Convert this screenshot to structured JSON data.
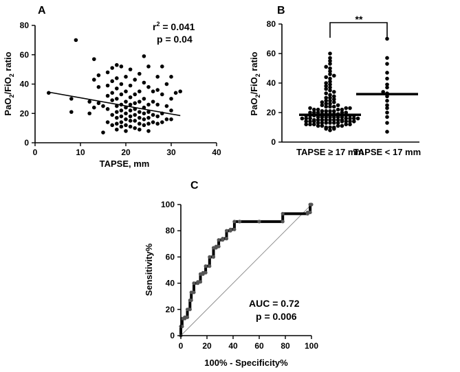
{
  "chart_data": [
    {
      "panel": "A",
      "type": "scatter",
      "xlabel": "TAPSE, mm",
      "ylabel": {
        "pre": "PaO",
        "sub1": "2",
        "mid": "/FiO",
        "sub2": "2",
        "post": " ratio"
      },
      "xlim": [
        0,
        40
      ],
      "ylim": [
        0,
        80
      ],
      "xticks": [
        "0",
        "10",
        "20",
        "30",
        "40"
      ],
      "yticks": [
        "0",
        "20",
        "40",
        "60",
        "80"
      ],
      "annotations": {
        "r_prefix": "r",
        "r_sup": "2",
        "r_value": " = 0.041",
        "p": "p = 0.04"
      },
      "fit_line": {
        "x": [
          3,
          32
        ],
        "y": [
          34.5,
          18.5
        ]
      },
      "points": [
        [
          3,
          34
        ],
        [
          8,
          30
        ],
        [
          8,
          21
        ],
        [
          9,
          70
        ],
        [
          12,
          28
        ],
        [
          12,
          20
        ],
        [
          13,
          57
        ],
        [
          13,
          43
        ],
        [
          13,
          24
        ],
        [
          14,
          46
        ],
        [
          14,
          38
        ],
        [
          14,
          27
        ],
        [
          15,
          7
        ],
        [
          15,
          25
        ],
        [
          16,
          48
        ],
        [
          16,
          39
        ],
        [
          16,
          32
        ],
        [
          16,
          23
        ],
        [
          16,
          14
        ],
        [
          17,
          51
        ],
        [
          17,
          42
        ],
        [
          17,
          34
        ],
        [
          17,
          29
        ],
        [
          17,
          19
        ],
        [
          17,
          12
        ],
        [
          18,
          53
        ],
        [
          18,
          44
        ],
        [
          18,
          37
        ],
        [
          18,
          30
        ],
        [
          18,
          25
        ],
        [
          18,
          21
        ],
        [
          18,
          17
        ],
        [
          18,
          13
        ],
        [
          18,
          9
        ],
        [
          19,
          52
        ],
        [
          19,
          40
        ],
        [
          19,
          33
        ],
        [
          19,
          26
        ],
        [
          19,
          22
        ],
        [
          19,
          18
        ],
        [
          19,
          14
        ],
        [
          19,
          11
        ],
        [
          20,
          45
        ],
        [
          20,
          35
        ],
        [
          20,
          28
        ],
        [
          20,
          24
        ],
        [
          20,
          20
        ],
        [
          20,
          16
        ],
        [
          20,
          12
        ],
        [
          20,
          8
        ],
        [
          21,
          50
        ],
        [
          21,
          39
        ],
        [
          21,
          31
        ],
        [
          21,
          26
        ],
        [
          21,
          22
        ],
        [
          21,
          18
        ],
        [
          21,
          15
        ],
        [
          21,
          11
        ],
        [
          22,
          43
        ],
        [
          22,
          33
        ],
        [
          22,
          27
        ],
        [
          22,
          23
        ],
        [
          22,
          19
        ],
        [
          22,
          15
        ],
        [
          22,
          10
        ],
        [
          23,
          47
        ],
        [
          23,
          35
        ],
        [
          23,
          28
        ],
        [
          23,
          21
        ],
        [
          23,
          17
        ],
        [
          23,
          13
        ],
        [
          23,
          9
        ],
        [
          24,
          59
        ],
        [
          24,
          41
        ],
        [
          24,
          30
        ],
        [
          24,
          24
        ],
        [
          24,
          20
        ],
        [
          24,
          16
        ],
        [
          24,
          12
        ],
        [
          25,
          52
        ],
        [
          25,
          38
        ],
        [
          25,
          26
        ],
        [
          25,
          21
        ],
        [
          25,
          17
        ],
        [
          25,
          13
        ],
        [
          25,
          8
        ],
        [
          26,
          35
        ],
        [
          26,
          28
        ],
        [
          26,
          19
        ],
        [
          26,
          14
        ],
        [
          27,
          45
        ],
        [
          27,
          36
        ],
        [
          27,
          26
        ],
        [
          27,
          18
        ],
        [
          27,
          13
        ],
        [
          28,
          52
        ],
        [
          28,
          33
        ],
        [
          28,
          20
        ],
        [
          28,
          14
        ],
        [
          29,
          40
        ],
        [
          29,
          25
        ],
        [
          29,
          16
        ],
        [
          30,
          45
        ],
        [
          30,
          30
        ],
        [
          30,
          22
        ],
        [
          30,
          16
        ],
        [
          31,
          34
        ],
        [
          32,
          35
        ]
      ]
    },
    {
      "panel": "B",
      "type": "scatter",
      "categories": [
        "TAPSE ≥ 17 mm",
        "TAPSE < 17 mm"
      ],
      "ylabel": {
        "pre": "PaO",
        "sub1": "2",
        "mid": "/FiO",
        "sub2": "2",
        "post": " ratio"
      },
      "ylim": [
        0,
        80
      ],
      "yticks": [
        "0",
        "20",
        "40",
        "60",
        "80"
      ],
      "significance": "**",
      "medians": [
        18.5,
        32.5
      ],
      "series": [
        {
          "name": "TAPSE ≥ 17 mm",
          "values": [
            8,
            9,
            9,
            10,
            10,
            10,
            11,
            11,
            11,
            11,
            12,
            12,
            12,
            12,
            12,
            13,
            13,
            13,
            13,
            13,
            13,
            14,
            14,
            14,
            14,
            14,
            14,
            14,
            15,
            15,
            15,
            15,
            15,
            15,
            15,
            15,
            16,
            16,
            16,
            16,
            16,
            16,
            16,
            17,
            17,
            17,
            17,
            17,
            17,
            17,
            18,
            18,
            18,
            18,
            18,
            18,
            19,
            19,
            19,
            19,
            19,
            20,
            20,
            20,
            20,
            20,
            21,
            21,
            21,
            21,
            22,
            22,
            22,
            22,
            23,
            23,
            23,
            24,
            24,
            24,
            25,
            25,
            26,
            26,
            27,
            27,
            28,
            28,
            29,
            30,
            30,
            31,
            32,
            33,
            34,
            35,
            36,
            37,
            38,
            39,
            40,
            41,
            43,
            44,
            45,
            46,
            48,
            50,
            51,
            53,
            55,
            57,
            60
          ]
        },
        {
          "name": "TAPSE < 17 mm",
          "values": [
            7,
            13,
            17,
            20,
            23,
            25,
            28,
            31,
            33,
            34,
            37,
            39,
            43,
            47,
            53,
            57,
            70
          ]
        }
      ]
    },
    {
      "panel": "C",
      "type": "line",
      "xlabel": "100% - Specificity%",
      "ylabel": "Sensitivity%",
      "xlim": [
        0,
        100
      ],
      "ylim": [
        0,
        100
      ],
      "xticks": [
        "0",
        "20",
        "40",
        "60",
        "80",
        "100"
      ],
      "yticks": [
        "0",
        "20",
        "40",
        "60",
        "80",
        "100"
      ],
      "annotations": {
        "auc": "AUC = 0.72",
        "p": "p = 0.006"
      },
      "reference_line": {
        "x": [
          0,
          100
        ],
        "y": [
          0,
          100
        ]
      },
      "roc": {
        "x": [
          0,
          0,
          1,
          1,
          3,
          3,
          5,
          5,
          7,
          7,
          8,
          8,
          10,
          10,
          13,
          13,
          15,
          15,
          17,
          17,
          19,
          19,
          22,
          22,
          25,
          25,
          27,
          27,
          29,
          29,
          32,
          32,
          35,
          35,
          38,
          38,
          41,
          41,
          45,
          45,
          60,
          60,
          78,
          78,
          97,
          97,
          99,
          99,
          100
        ],
        "y": [
          0,
          7,
          7,
          13,
          13,
          14,
          14,
          20,
          20,
          27,
          27,
          33,
          33,
          40,
          40,
          41,
          41,
          47,
          47,
          48,
          48,
          53,
          53,
          60,
          60,
          67,
          67,
          68,
          68,
          73,
          73,
          74,
          74,
          80,
          80,
          81,
          81,
          87,
          87,
          87,
          87,
          87,
          87,
          93,
          93,
          94,
          94,
          100,
          100
        ]
      }
    }
  ]
}
